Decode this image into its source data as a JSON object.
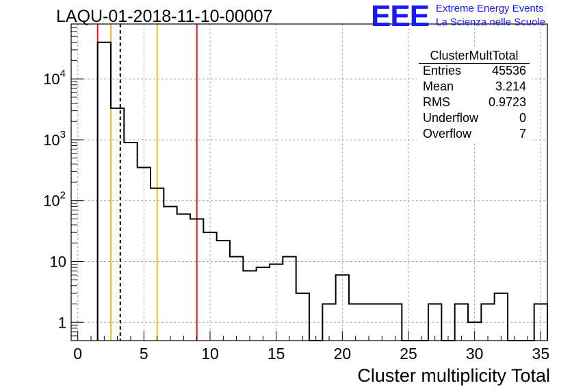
{
  "chart_data": {
    "type": "histogram",
    "title": "LAQU-01-2018-11-10-00007",
    "xlabel": "Cluster multiplicity Total",
    "ylabel": "",
    "xlim": [
      -0.5,
      35.5
    ],
    "ylim": [
      0.5,
      80000
    ],
    "yscale": "log",
    "grid": true,
    "bin_width": 1,
    "bins": [
      {
        "x": 2,
        "y": 40000
      },
      {
        "x": 3,
        "y": 3300
      },
      {
        "x": 4,
        "y": 900
      },
      {
        "x": 5,
        "y": 350
      },
      {
        "x": 6,
        "y": 160
      },
      {
        "x": 7,
        "y": 80
      },
      {
        "x": 8,
        "y": 60
      },
      {
        "x": 9,
        "y": 50
      },
      {
        "x": 10,
        "y": 30
      },
      {
        "x": 11,
        "y": 22
      },
      {
        "x": 12,
        "y": 12
      },
      {
        "x": 13,
        "y": 7
      },
      {
        "x": 14,
        "y": 8
      },
      {
        "x": 15,
        "y": 9
      },
      {
        "x": 16,
        "y": 12
      },
      {
        "x": 17,
        "y": 3
      },
      {
        "x": 18,
        "y": 0
      },
      {
        "x": 19,
        "y": 2
      },
      {
        "x": 20,
        "y": 6
      },
      {
        "x": 21,
        "y": 2
      },
      {
        "x": 22,
        "y": 2
      },
      {
        "x": 23,
        "y": 2
      },
      {
        "x": 24,
        "y": 2
      },
      {
        "x": 25,
        "y": 0
      },
      {
        "x": 26,
        "y": 0
      },
      {
        "x": 27,
        "y": 2
      },
      {
        "x": 28,
        "y": 0
      },
      {
        "x": 29,
        "y": 2
      },
      {
        "x": 30,
        "y": 1
      },
      {
        "x": 31,
        "y": 2
      },
      {
        "x": 32,
        "y": 3
      },
      {
        "x": 33,
        "y": 0
      },
      {
        "x": 34,
        "y": 0
      },
      {
        "x": 35,
        "y": 2
      }
    ],
    "x_ticks": [
      0,
      5,
      10,
      15,
      20,
      25,
      30,
      35
    ],
    "x_tick_labels": [
      "0",
      "5",
      "10",
      "15",
      "20",
      "25",
      "30",
      "35"
    ],
    "y_ticks": [
      1,
      10,
      100,
      1000,
      10000
    ],
    "vertical_lines": [
      {
        "x": 1.5,
        "color": "#e8141c",
        "style": "solid"
      },
      {
        "x": 2.5,
        "color": "#f2c318",
        "style": "solid"
      },
      {
        "x": 3.214,
        "color": "#000000",
        "style": "dashed"
      },
      {
        "x": 6.0,
        "color": "#f2c318",
        "style": "solid"
      },
      {
        "x": 9.0,
        "color": "#e8141c",
        "style": "solid"
      }
    ],
    "stats_box": {
      "name": "ClusterMultTotal",
      "rows": [
        {
          "label": "Entries",
          "value": "45536"
        },
        {
          "label": "Mean",
          "value": "3.214"
        },
        {
          "label": "RMS",
          "value": "0.9723"
        },
        {
          "label": "Underflow",
          "value": "0"
        },
        {
          "label": "Overflow",
          "value": "7"
        }
      ]
    }
  },
  "logo": {
    "mark": "EEE",
    "line1": "Extreme Energy Events",
    "line2": "La Scienza nelle Scuole",
    "color": "#1a1aff"
  }
}
